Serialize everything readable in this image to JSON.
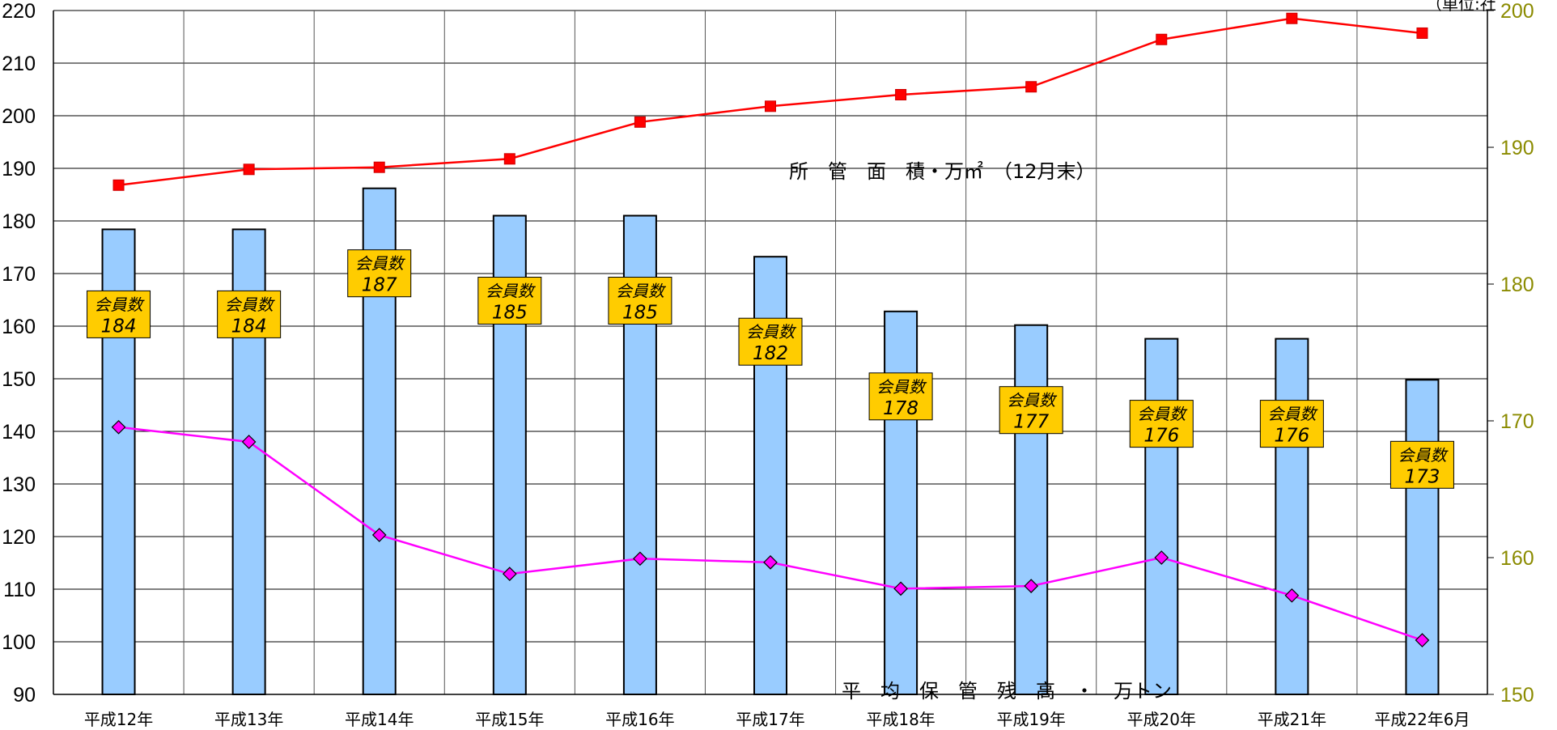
{
  "chart_data": {
    "type": "bar",
    "categories": [
      "平成12年",
      "平成13年",
      "平成14年",
      "平成15年",
      "平成16年",
      "平成17年",
      "平成18年",
      "平成19年",
      "平成20年",
      "平成21年",
      "平成22年6月"
    ],
    "left_axis": {
      "ylim": [
        90,
        220
      ],
      "ticks": [
        90,
        100,
        110,
        120,
        130,
        140,
        150,
        160,
        170,
        180,
        190,
        200,
        210,
        220
      ]
    },
    "right_axis": {
      "ylim": [
        150,
        200
      ],
      "ticks": [
        150,
        160,
        170,
        180,
        190,
        200
      ],
      "color": "#8b8b00"
    },
    "unit_label": "（単位:社",
    "grid": true,
    "series": [
      {
        "name": "会員数",
        "type": "bar",
        "axis": "right",
        "color": "#99ccff",
        "values": [
          184,
          184,
          187,
          185,
          185,
          182,
          178,
          177,
          176,
          176,
          173
        ],
        "label_color": "#ffcc00"
      },
      {
        "name": "所　管　面　積・万㎡　（12月末）",
        "type": "line",
        "axis": "left",
        "color": "#ff0000",
        "marker": "square",
        "values": [
          186.8,
          189.8,
          190.2,
          191.8,
          198.8,
          201.8,
          204.0,
          205.5,
          214.5,
          218.5,
          215.7
        ]
      },
      {
        "name": "平　均　保　管　残　高　・　万トン",
        "type": "line",
        "axis": "left",
        "color": "#ff00ff",
        "marker": "diamond",
        "values": [
          140.8,
          138.0,
          120.3,
          112.9,
          115.8,
          115.1,
          110.1,
          110.6,
          116.0,
          108.8,
          100.3
        ]
      }
    ]
  }
}
